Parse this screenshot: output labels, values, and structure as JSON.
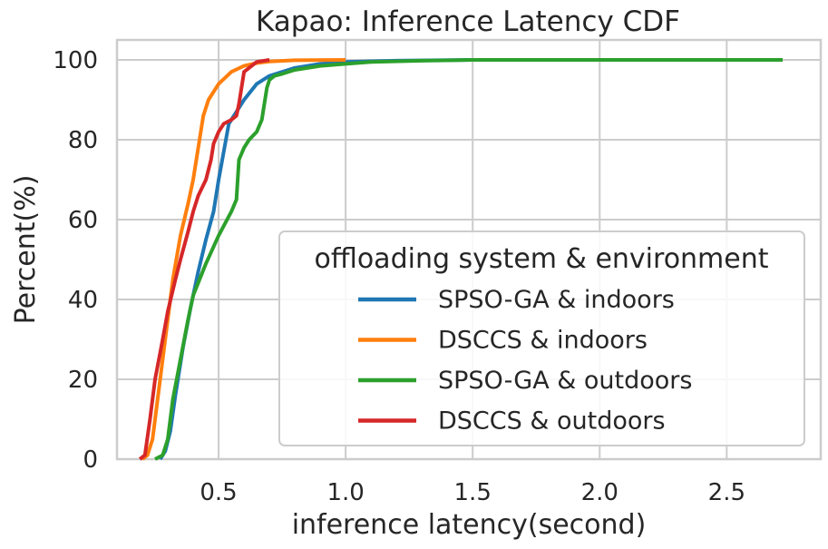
{
  "chart_data": {
    "type": "line",
    "title": "Kapao: Inference Latency CDF",
    "xlabel": "inference latency(second)",
    "ylabel": "Percent(%)",
    "xlim": [
      0.1,
      2.87
    ],
    "ylim": [
      0,
      100
    ],
    "xticks": [
      0.5,
      1.0,
      1.5,
      2.0,
      2.5
    ],
    "xtick_labels": [
      "0.5",
      "1.0",
      "1.5",
      "2.0",
      "2.5"
    ],
    "yticks": [
      0,
      20,
      40,
      60,
      80,
      100
    ],
    "ytick_labels": [
      "0",
      "20",
      "40",
      "60",
      "80",
      "100"
    ],
    "grid": true,
    "legend": {
      "title": "offloading system & environment",
      "placement": "lower right"
    },
    "series": [
      {
        "name": "SPSO-GA & indoors",
        "color": "#1f77b4",
        "x": [
          0.27,
          0.29,
          0.31,
          0.33,
          0.36,
          0.39,
          0.42,
          0.45,
          0.48,
          0.5,
          0.52,
          0.54,
          0.57,
          0.6,
          0.65,
          0.7,
          0.8,
          0.9,
          1.0,
          1.2,
          1.5,
          2.18
        ],
        "y": [
          0,
          2,
          7,
          16,
          28,
          38,
          47,
          55,
          62,
          70,
          77,
          84,
          87,
          90,
          94,
          96,
          98,
          99,
          99.5,
          99.8,
          100,
          100
        ]
      },
      {
        "name": "DSCCS & indoors",
        "color": "#ff7f0e",
        "x": [
          0.2,
          0.22,
          0.24,
          0.26,
          0.28,
          0.3,
          0.32,
          0.35,
          0.38,
          0.4,
          0.42,
          0.44,
          0.46,
          0.5,
          0.55,
          0.6,
          0.65,
          0.7,
          0.8,
          1.0
        ],
        "y": [
          0,
          1,
          5,
          15,
          25,
          35,
          45,
          56,
          64,
          70,
          78,
          86,
          90,
          94,
          97,
          98.5,
          99.2,
          99.6,
          99.9,
          100
        ]
      },
      {
        "name": "SPSO-GA & outdoors",
        "color": "#2ca02c",
        "x": [
          0.25,
          0.28,
          0.3,
          0.32,
          0.35,
          0.38,
          0.4,
          0.45,
          0.5,
          0.55,
          0.57,
          0.58,
          0.6,
          0.62,
          0.65,
          0.67,
          0.68,
          0.69,
          0.7,
          0.72,
          0.75,
          0.8,
          0.9,
          1.0,
          1.1,
          1.3,
          1.5,
          2.0,
          2.72
        ],
        "y": [
          0,
          1,
          5,
          15,
          25,
          35,
          41,
          49,
          56,
          62,
          65,
          75,
          78,
          80,
          82,
          85,
          89,
          93,
          95,
          96,
          96.5,
          97.5,
          98.5,
          99,
          99.5,
          99.8,
          100,
          100,
          100
        ]
      },
      {
        "name": "DSCCS & outdoors",
        "color": "#d62728",
        "x": [
          0.19,
          0.21,
          0.23,
          0.25,
          0.28,
          0.3,
          0.33,
          0.35,
          0.38,
          0.4,
          0.42,
          0.45,
          0.47,
          0.48,
          0.5,
          0.52,
          0.55,
          0.57,
          0.58,
          0.6,
          0.65,
          0.7
        ],
        "y": [
          0,
          1,
          10,
          20,
          30,
          37,
          45,
          50,
          57,
          62,
          66,
          70,
          75,
          79,
          82,
          84,
          85,
          86,
          89,
          97,
          99.5,
          100
        ]
      }
    ]
  }
}
